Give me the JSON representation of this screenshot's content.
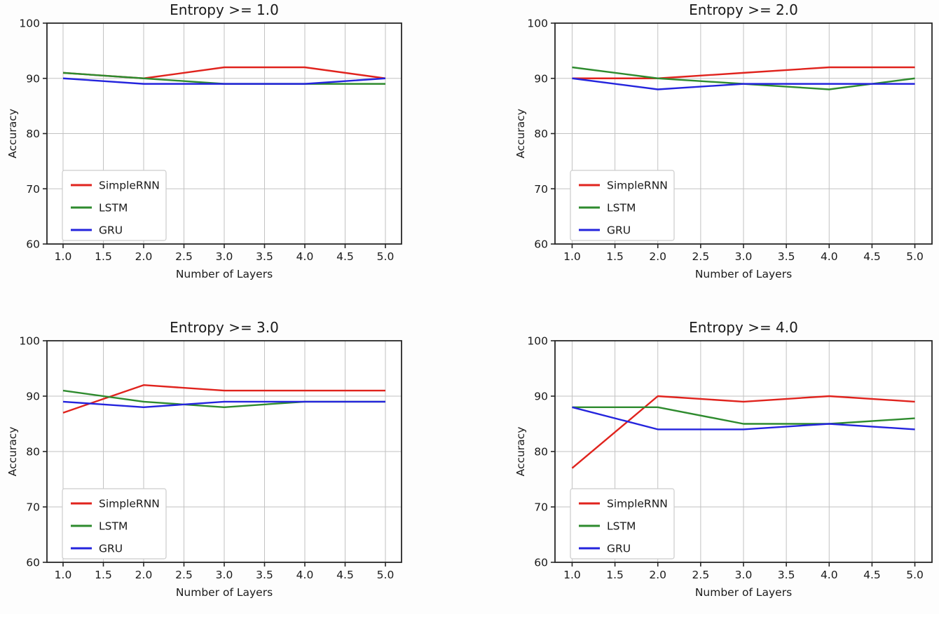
{
  "figure": {
    "ylabel": "Accuracy",
    "xlabel": "Number of Layers",
    "series_names": [
      "SimpleRNN",
      "LSTM",
      "GRU"
    ],
    "colors": {
      "SimpleRNN": "#e0231d",
      "LSTM": "#2e8b2e",
      "GRU": "#2424dd"
    },
    "grid_color": "#c2c2c2",
    "spine_color": "#262626",
    "legend_border_color": "#cccccc",
    "background": "#fdfdfd"
  },
  "chart_data": [
    {
      "type": "line",
      "title": "Entropy >= 1.0",
      "xlabel": "Number of Layers",
      "ylabel": "Accuracy",
      "x": [
        1,
        2,
        3,
        4,
        5
      ],
      "series": [
        {
          "name": "SimpleRNN",
          "color": "#e0231d",
          "values": [
            91,
            90,
            92,
            92,
            90
          ]
        },
        {
          "name": "LSTM",
          "color": "#2e8b2e",
          "values": [
            91,
            90,
            89,
            89,
            89
          ]
        },
        {
          "name": "GRU",
          "color": "#2424dd",
          "values": [
            90,
            89,
            89,
            89,
            90
          ]
        }
      ],
      "xlim": [
        0.8,
        5.2
      ],
      "ylim": [
        60,
        100
      ],
      "xticks": [
        1.0,
        1.5,
        2.0,
        2.5,
        3.0,
        3.5,
        4.0,
        4.5,
        5.0
      ],
      "xtick_labels": [
        "1.0",
        "1.5",
        "2.0",
        "2.5",
        "3.0",
        "3.5",
        "4.0",
        "4.5",
        "5.0"
      ],
      "yticks": [
        60,
        70,
        80,
        90,
        100
      ],
      "ytick_labels": [
        "60",
        "70",
        "80",
        "90",
        "100"
      ],
      "grid": true,
      "legend_position": "lower left"
    },
    {
      "type": "line",
      "title": "Entropy >= 2.0",
      "xlabel": "Number of Layers",
      "ylabel": "Accuracy",
      "x": [
        1,
        2,
        3,
        4,
        5
      ],
      "series": [
        {
          "name": "SimpleRNN",
          "color": "#e0231d",
          "values": [
            90,
            90,
            91,
            92,
            92
          ]
        },
        {
          "name": "LSTM",
          "color": "#2e8b2e",
          "values": [
            92,
            90,
            89,
            88,
            90
          ]
        },
        {
          "name": "GRU",
          "color": "#2424dd",
          "values": [
            90,
            88,
            89,
            89,
            89
          ]
        }
      ],
      "xlim": [
        0.8,
        5.2
      ],
      "ylim": [
        60,
        100
      ],
      "xticks": [
        1.0,
        1.5,
        2.0,
        2.5,
        3.0,
        3.5,
        4.0,
        4.5,
        5.0
      ],
      "xtick_labels": [
        "1.0",
        "1.5",
        "2.0",
        "2.5",
        "3.0",
        "3.5",
        "4.0",
        "4.5",
        "5.0"
      ],
      "yticks": [
        60,
        70,
        80,
        90,
        100
      ],
      "ytick_labels": [
        "60",
        "70",
        "80",
        "90",
        "100"
      ],
      "grid": true,
      "legend_position": "lower left"
    },
    {
      "type": "line",
      "title": "Entropy >= 3.0",
      "xlabel": "Number of Layers",
      "ylabel": "Accuracy",
      "x": [
        1,
        2,
        3,
        4,
        5
      ],
      "series": [
        {
          "name": "SimpleRNN",
          "color": "#e0231d",
          "values": [
            87,
            92,
            91,
            91,
            91
          ]
        },
        {
          "name": "LSTM",
          "color": "#2e8b2e",
          "values": [
            91,
            89,
            88,
            89,
            89
          ]
        },
        {
          "name": "GRU",
          "color": "#2424dd",
          "values": [
            89,
            88,
            89,
            89,
            89
          ]
        }
      ],
      "xlim": [
        0.8,
        5.2
      ],
      "ylim": [
        60,
        100
      ],
      "xticks": [
        1.0,
        1.5,
        2.0,
        2.5,
        3.0,
        3.5,
        4.0,
        4.5,
        5.0
      ],
      "xtick_labels": [
        "1.0",
        "1.5",
        "2.0",
        "2.5",
        "3.0",
        "3.5",
        "4.0",
        "4.5",
        "5.0"
      ],
      "yticks": [
        60,
        70,
        80,
        90,
        100
      ],
      "ytick_labels": [
        "60",
        "70",
        "80",
        "90",
        "100"
      ],
      "grid": true,
      "legend_position": "lower left"
    },
    {
      "type": "line",
      "title": "Entropy >= 4.0",
      "xlabel": "Number of Layers",
      "ylabel": "Accuracy",
      "x": [
        1,
        2,
        3,
        4,
        5
      ],
      "series": [
        {
          "name": "SimpleRNN",
          "color": "#e0231d",
          "values": [
            77,
            90,
            89,
            90,
            89
          ]
        },
        {
          "name": "LSTM",
          "color": "#2e8b2e",
          "values": [
            88,
            88,
            85,
            85,
            86
          ]
        },
        {
          "name": "GRU",
          "color": "#2424dd",
          "values": [
            88,
            84,
            84,
            85,
            84
          ]
        }
      ],
      "xlim": [
        0.8,
        5.2
      ],
      "ylim": [
        60,
        100
      ],
      "xticks": [
        1.0,
        1.5,
        2.0,
        2.5,
        3.0,
        3.5,
        4.0,
        4.5,
        5.0
      ],
      "xtick_labels": [
        "1.0",
        "1.5",
        "2.0",
        "2.5",
        "3.0",
        "3.5",
        "4.0",
        "4.5",
        "5.0"
      ],
      "yticks": [
        60,
        70,
        80,
        90,
        100
      ],
      "ytick_labels": [
        "60",
        "70",
        "80",
        "90",
        "100"
      ],
      "grid": true,
      "legend_position": "lower left"
    }
  ]
}
